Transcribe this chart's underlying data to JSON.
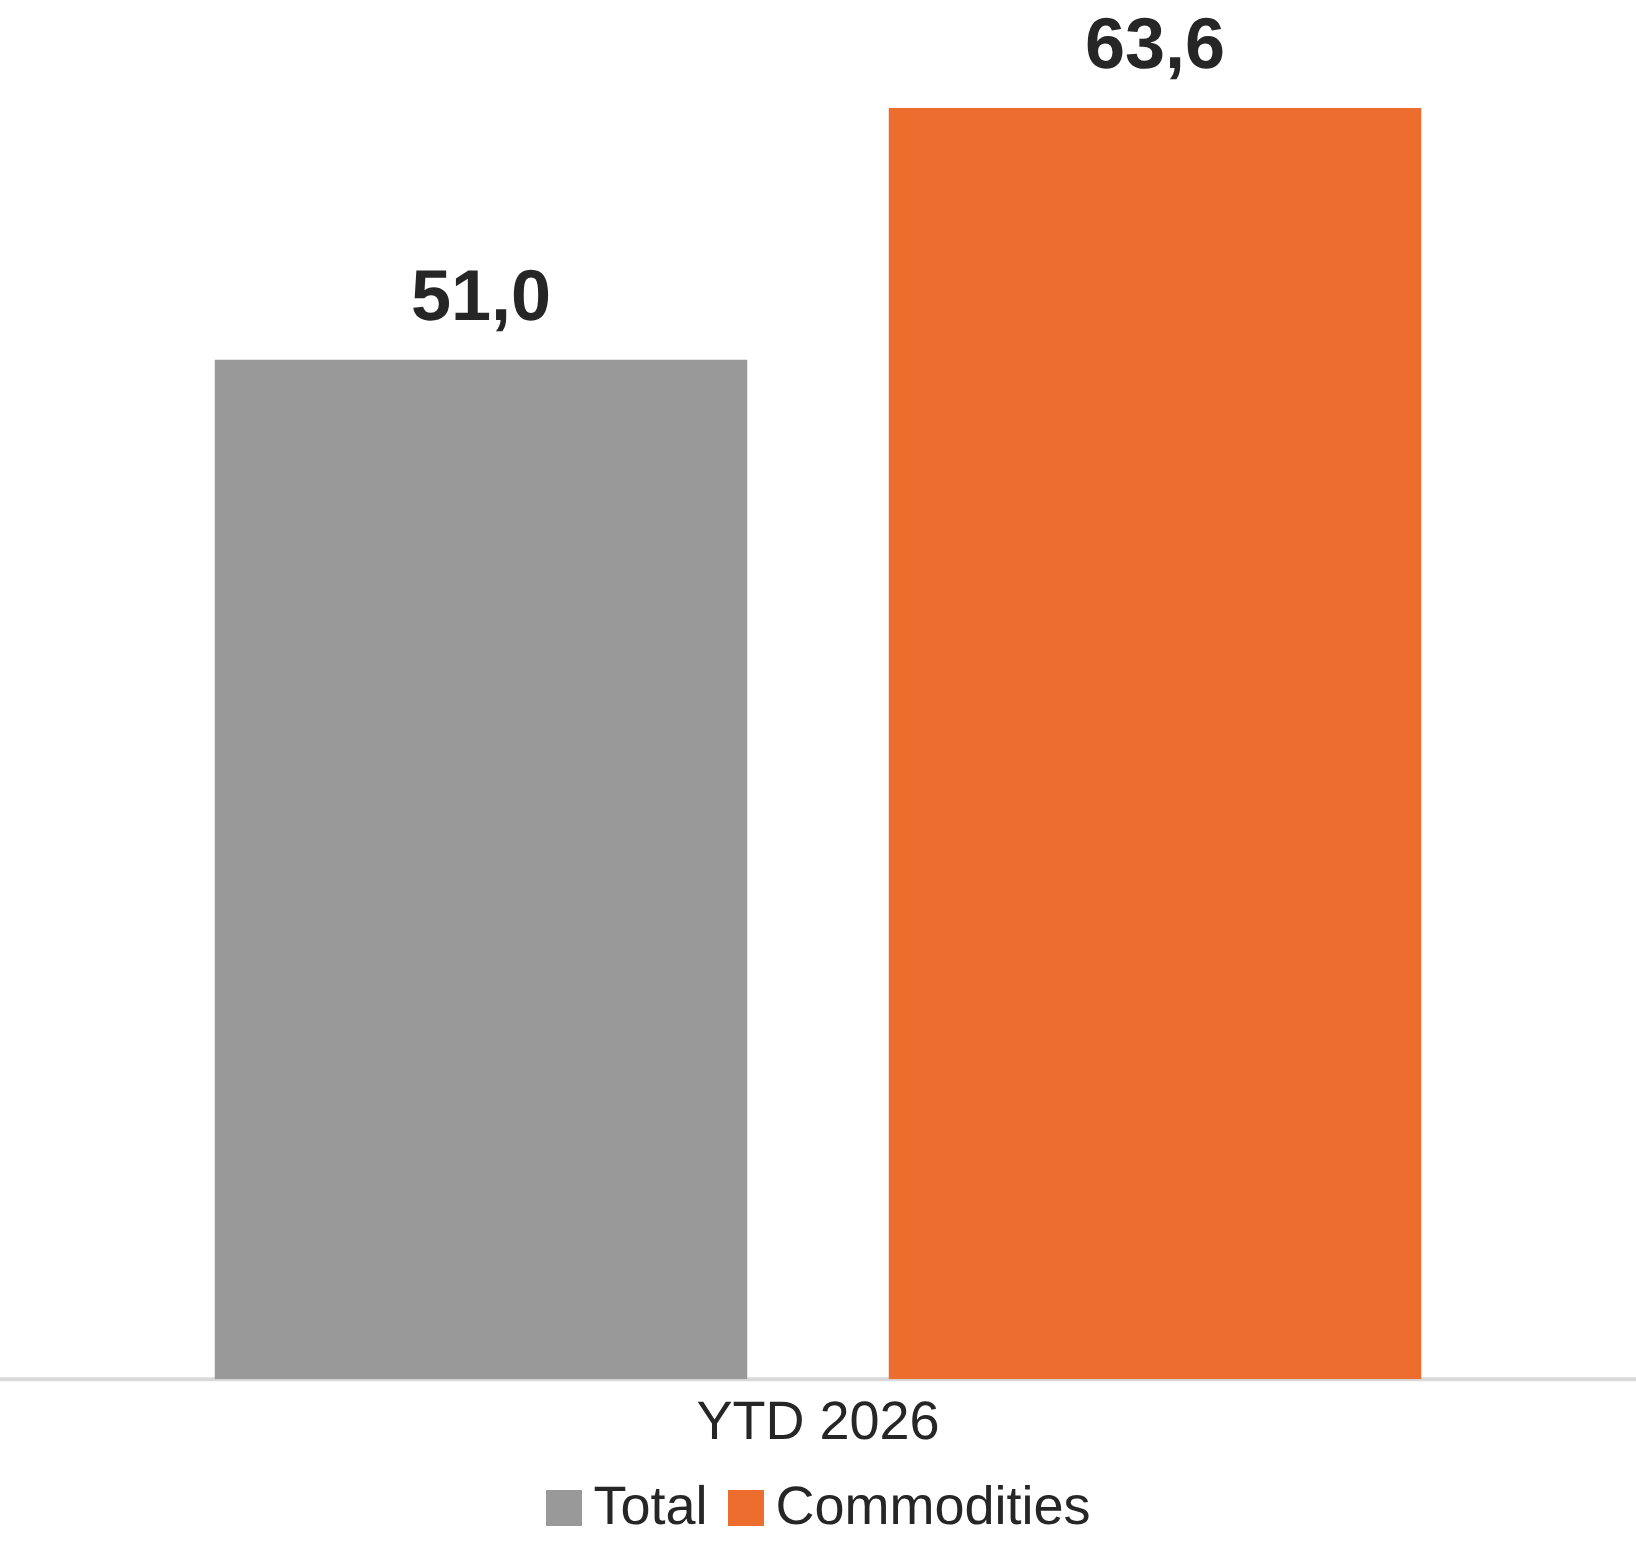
{
  "chart_data": {
    "type": "bar",
    "categories": [
      null,
      null
    ],
    "xlabel": "YTD 2026",
    "stacked": true,
    "series": [
      {
        "name": "Total",
        "color": "#999999",
        "values": [
          51.0,
          null
        ],
        "value_labels": [
          "51,0",
          null
        ]
      },
      {
        "name": "Commodities",
        "color": "#ed6d2f",
        "values": [
          null,
          63.6
        ],
        "value_labels": [
          null,
          "63,6"
        ]
      }
    ],
    "grid": false,
    "legend": "bottom"
  }
}
